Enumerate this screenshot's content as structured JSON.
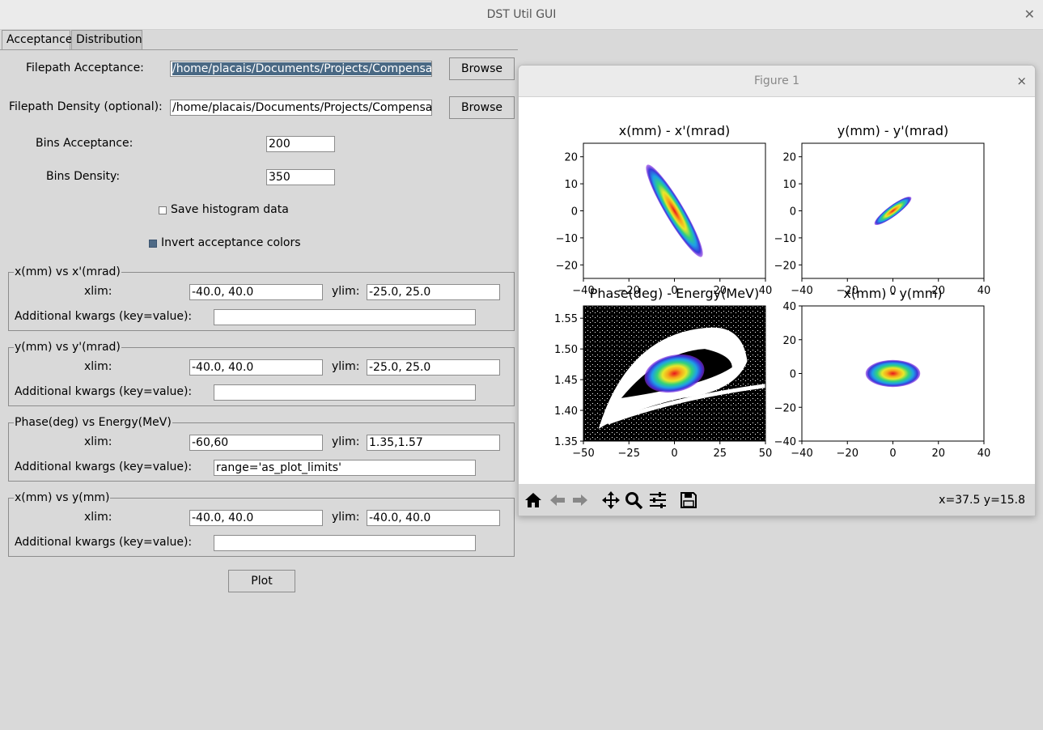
{
  "window": {
    "title": "DST Util GUI",
    "close_glyph": "✕"
  },
  "tabs": [
    {
      "label": "Acceptance"
    },
    {
      "label": "Distribution"
    }
  ],
  "form": {
    "filepath_acceptance_label": "Filepath Acceptance:",
    "filepath_acceptance_value": "/home/placais/Documents/Projects/Compensation",
    "filepath_density_label": "Filepath Density (optional):",
    "filepath_density_value": "/home/placais/Documents/Projects/Compensation",
    "browse_label": "Browse",
    "bins_acceptance_label": "Bins Acceptance:",
    "bins_acceptance_value": "200",
    "bins_density_label": "Bins Density:",
    "bins_density_value": "350",
    "save_histogram_label": "Save histogram data",
    "save_histogram_checked": false,
    "invert_colors_label": "Invert acceptance colors",
    "invert_colors_checked": true,
    "xlim_label": "xlim:",
    "ylim_label": "ylim:",
    "kwargs_label": "Additional kwargs (key=value):",
    "plot_label": "Plot"
  },
  "groups": [
    {
      "title": "x(mm) vs x'(mrad)",
      "xlim": "-40.0, 40.0",
      "ylim": "-25.0, 25.0",
      "kwargs": ""
    },
    {
      "title": "y(mm) vs y'(mrad)",
      "xlim": "-40.0, 40.0",
      "ylim": "-25.0, 25.0",
      "kwargs": ""
    },
    {
      "title": "Phase(deg) vs Energy(MeV)",
      "xlim": "-60,60",
      "ylim": "1.35,1.57",
      "kwargs": "range='as_plot_limits'"
    },
    {
      "title": "x(mm) vs y(mm)",
      "xlim": "-40.0, 40.0",
      "ylim": "-40.0, 40.0",
      "kwargs": ""
    }
  ],
  "figure": {
    "title": "Figure 1",
    "close_glyph": "×",
    "coords": "x=37.5 y=15.8",
    "toolbar_icons": [
      "home-icon",
      "back-arrow-icon",
      "forward-arrow-icon",
      "pan-icon",
      "zoom-icon",
      "configure-subplots-icon",
      "save-icon"
    ]
  },
  "chart_data": [
    {
      "type": "heatmap",
      "title": "x(mm) - x'(mrad)",
      "xlim": [
        -40,
        40
      ],
      "ylim": [
        -25,
        25
      ],
      "xticks": [
        "−40",
        "−20",
        "0",
        "20",
        "40"
      ],
      "yticks": [
        "20",
        "10",
        "0",
        "−10",
        "−20"
      ],
      "distribution": {
        "center": [
          0,
          0
        ],
        "x_range": [
          -12,
          12
        ],
        "y_range": [
          -17,
          17
        ],
        "correlation": "negative"
      }
    },
    {
      "type": "heatmap",
      "title": "y(mm) - y'(mrad)",
      "xlim": [
        -40,
        40
      ],
      "ylim": [
        -25,
        25
      ],
      "xticks": [
        "−40",
        "−20",
        "0",
        "20",
        "40"
      ],
      "yticks": [
        "20",
        "10",
        "0",
        "−10",
        "−20"
      ],
      "distribution": {
        "center": [
          0,
          0
        ],
        "x_range": [
          -8,
          8
        ],
        "y_range": [
          -5,
          5
        ],
        "correlation": "positive"
      }
    },
    {
      "type": "heatmap",
      "title": "Phase(deg) - Energy(MeV)",
      "xlim": [
        -60,
        60
      ],
      "ylim": [
        1.35,
        1.57
      ],
      "xticks": [
        "−50",
        "−25",
        "0",
        "25",
        "50"
      ],
      "yticks": [
        "1.55",
        "1.50",
        "1.45",
        "1.40",
        "1.35"
      ],
      "background": "acceptance (inverted colors)",
      "distribution": {
        "center": [
          0,
          1.46
        ],
        "x_range": [
          -20,
          20
        ],
        "y_range": [
          1.43,
          1.49
        ],
        "correlation": "positive"
      }
    },
    {
      "type": "heatmap",
      "title": "x(mm) - y(mm)",
      "xlim": [
        -40,
        40
      ],
      "ylim": [
        -40,
        40
      ],
      "xticks": [
        "−40",
        "−20",
        "0",
        "20",
        "40"
      ],
      "yticks": [
        "40",
        "20",
        "0",
        "−20",
        "−40"
      ],
      "distribution": {
        "center": [
          0,
          0
        ],
        "x_range": [
          -12,
          12
        ],
        "y_range": [
          -8,
          8
        ],
        "correlation": "none"
      }
    }
  ],
  "colors": {
    "selection": "#4a6984",
    "background": "#d9d9d9",
    "checkbox_on": "#4e6a86"
  }
}
